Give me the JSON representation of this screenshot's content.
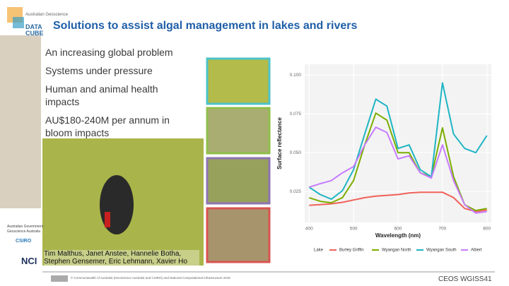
{
  "logo": {
    "org": "Australian Geoscience",
    "name": "DATA CUBE"
  },
  "title": "Solutions to assist algal management in lakes and rivers",
  "bullets": [
    "An increasing global problem",
    "Systems under pressure",
    "Human and animal health impacts",
    "AU$180-240M per annum in bloom impacts"
  ],
  "credits": "Tim Malthus, Janet Anstee, Hannelie Botha, Stephen Gensemer, Eric Lehmann, Xavier Ho",
  "partners": [
    "Australian Government",
    "Geoscience Australia",
    "CSIRO",
    "NCI"
  ],
  "copyright": "© Commonwealth of Australia (Geoscience Australia and CSIRO) and National Computational Infrastructure 2015",
  "footer": "CEOS WGISS41",
  "chart_data": {
    "type": "line",
    "x_label": "Wavelength (nm)",
    "y_label": "Surface reflectance",
    "legend_title": "Lake",
    "x": [
      400,
      425,
      450,
      475,
      500,
      525,
      550,
      575,
      600,
      625,
      650,
      675,
      700,
      725,
      750,
      775,
      800
    ],
    "xlim": [
      390,
      810
    ],
    "xticks": [
      400,
      500,
      600,
      700,
      800
    ],
    "ylim": [
      0.005,
      0.107
    ],
    "yticks": [
      0.025,
      {
        "value": 0.05,
        "label": "0.050"
      },
      0.075,
      {
        "value": 0.1,
        "label": "0.100"
      }
    ],
    "grid": true,
    "series": [
      {
        "name": "Burley Griffin",
        "color": "#f0625a",
        "values": [
          0.016,
          0.0165,
          0.017,
          0.018,
          0.0195,
          0.021,
          0.022,
          0.0225,
          0.023,
          0.024,
          0.0245,
          0.0245,
          0.0245,
          0.021,
          0.014,
          0.012,
          0.013
        ]
      },
      {
        "name": "Wyangan North",
        "color": "#7cae00",
        "values": [
          0.021,
          0.0186,
          0.0177,
          0.021,
          0.032,
          0.055,
          0.0755,
          0.071,
          0.05,
          0.05,
          0.037,
          0.0345,
          0.066,
          0.0345,
          0.0164,
          0.0127,
          0.014
        ]
      },
      {
        "name": "Wyangan South",
        "color": "#1fb5c4",
        "values": [
          0.0277,
          0.023,
          0.02,
          0.0255,
          0.039,
          0.062,
          0.0845,
          0.08,
          0.0527,
          0.055,
          0.039,
          0.0345,
          0.095,
          0.062,
          0.0527,
          0.05,
          0.061
        ]
      },
      {
        "name": "Albert",
        "color": "#c77cff",
        "values": [
          0.0277,
          0.03,
          0.032,
          0.037,
          0.041,
          0.055,
          0.0664,
          0.063,
          0.046,
          0.048,
          0.037,
          0.0336,
          0.055,
          0.032,
          0.0164,
          0.011,
          0.012
        ]
      }
    ]
  }
}
